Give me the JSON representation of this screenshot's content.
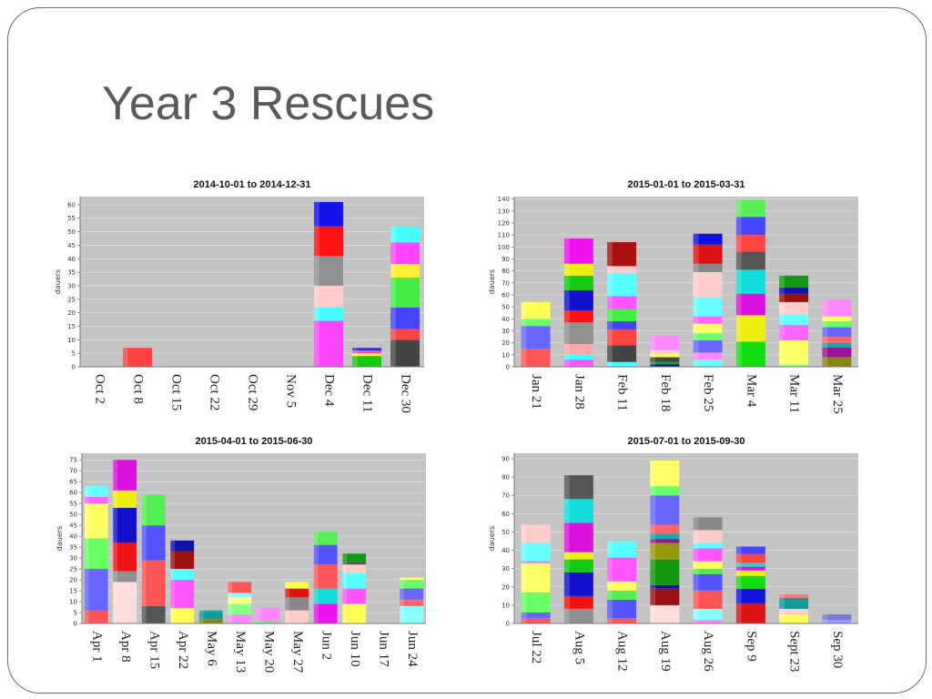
{
  "slide": {
    "title": "Year 3 Rescues"
  },
  "chart_data": [
    {
      "type": "bar",
      "title": "2014-10-01 to 2014-12-31",
      "ylabel": "dauers",
      "ylim": [
        0,
        63
      ],
      "yticks": [
        0,
        5,
        10,
        15,
        20,
        25,
        30,
        35,
        40,
        45,
        50,
        55,
        60
      ],
      "categories": [
        "Oct 2",
        "Oct 8",
        "Oct 15",
        "Oct 22",
        "Oct 29",
        "Nov 5",
        "Dec 4",
        "Dec 11",
        "Dec 30"
      ],
      "stacks": [
        [],
        [
          [
            7,
            "#ff4040"
          ]
        ],
        [],
        [],
        [],
        [],
        [
          [
            17,
            "#ff44ff"
          ],
          [
            5,
            "#44ffff"
          ],
          [
            8,
            "#ffcccc"
          ],
          [
            11,
            "#909090"
          ],
          [
            11,
            "#ff1111"
          ],
          [
            9,
            "#1111ee"
          ]
        ],
        [
          [
            4,
            "#11cc11"
          ],
          [
            1,
            "#ffee33"
          ],
          [
            1,
            "#ff44ff"
          ],
          [
            1,
            "#3333cc"
          ]
        ],
        [
          [
            10,
            "#444444"
          ],
          [
            4,
            "#ff4444"
          ],
          [
            8,
            "#4444ff"
          ],
          [
            11,
            "#44ee44"
          ],
          [
            5,
            "#ffee33"
          ],
          [
            8,
            "#ff44ff"
          ],
          [
            6,
            "#44ffff"
          ]
        ]
      ]
    },
    {
      "type": "bar",
      "title": "2015-01-01 to 2015-03-31",
      "ylabel": "dauers",
      "ylim": [
        0,
        142
      ],
      "yticks": [
        0,
        10,
        20,
        30,
        40,
        50,
        60,
        70,
        80,
        90,
        100,
        110,
        120,
        130,
        140
      ],
      "categories": [
        "Jan 21",
        "Jan 28",
        "Feb 11",
        "Feb 18",
        "Feb 25",
        "Mar 4",
        "Mar 11",
        "Mar 25"
      ],
      "stacks": [
        [
          [
            15,
            "#ff5555"
          ],
          [
            19,
            "#6666ff"
          ],
          [
            6,
            "#66ff66"
          ],
          [
            14,
            "#ffff55"
          ]
        ],
        [
          [
            6,
            "#ff55ff"
          ],
          [
            4,
            "#44ffff"
          ],
          [
            9,
            "#ffaaaa"
          ],
          [
            18,
            "#909090"
          ],
          [
            10,
            "#ff1111"
          ],
          [
            17,
            "#1111cc"
          ],
          [
            12,
            "#11cc11"
          ],
          [
            10,
            "#eeee11"
          ],
          [
            21,
            "#ee11ee"
          ]
        ],
        [
          [
            4,
            "#44ffff"
          ],
          [
            14,
            "#444444"
          ],
          [
            13,
            "#ff4444"
          ],
          [
            7,
            "#4444ff"
          ],
          [
            10,
            "#44ee44"
          ],
          [
            11,
            "#ff55ff"
          ],
          [
            19,
            "#55ffff"
          ],
          [
            6,
            "#ffcccc"
          ],
          [
            20,
            "#aa1111"
          ]
        ],
        [
          [
            2,
            "#0000aa"
          ],
          [
            2,
            "#11aa11"
          ],
          [
            4,
            "#444444"
          ],
          [
            3,
            "#ffff55"
          ],
          [
            3,
            "#ffcccc"
          ],
          [
            12,
            "#ff88ff"
          ]
        ],
        [
          [
            6,
            "#66ffff"
          ],
          [
            6,
            "#ff88ff"
          ],
          [
            10,
            "#6666ff"
          ],
          [
            6,
            "#66ff66"
          ],
          [
            8,
            "#ffff66"
          ],
          [
            6,
            "#ff66ff"
          ],
          [
            16,
            "#66ffff"
          ],
          [
            21,
            "#ffcccc"
          ],
          [
            7,
            "#888888"
          ],
          [
            16,
            "#dd1111"
          ],
          [
            9,
            "#1111dd"
          ]
        ],
        [
          [
            21,
            "#11dd11"
          ],
          [
            22,
            "#eeee11"
          ],
          [
            18,
            "#dd11dd"
          ],
          [
            20,
            "#11dddd"
          ],
          [
            15,
            "#555555"
          ],
          [
            14,
            "#ff4444"
          ],
          [
            15,
            "#4444ff"
          ],
          [
            14,
            "#55ee55"
          ]
        ],
        [
          [
            2,
            "#88ff88"
          ],
          [
            20,
            "#ffff66"
          ],
          [
            13,
            "#ff66ff"
          ],
          [
            9,
            "#66ffff"
          ],
          [
            10,
            "#ffcccc"
          ],
          [
            7,
            "#991111"
          ],
          [
            5,
            "#1111aa"
          ],
          [
            10,
            "#119911"
          ]
        ],
        [
          [
            8,
            "#888811"
          ],
          [
            8,
            "#991199"
          ],
          [
            4,
            "#11aaaa"
          ],
          [
            5,
            "#ff6666"
          ],
          [
            8,
            "#6666ff"
          ],
          [
            5,
            "#66ff66"
          ],
          [
            4,
            "#ffff66"
          ],
          [
            14,
            "#ff88ff"
          ]
        ]
      ]
    },
    {
      "type": "bar",
      "title": "2015-04-01 to 2015-06-30",
      "ylabel": "dauers",
      "ylim": [
        0,
        78
      ],
      "yticks": [
        0,
        5,
        10,
        15,
        20,
        25,
        30,
        35,
        40,
        45,
        50,
        55,
        60,
        65,
        70,
        75
      ],
      "categories": [
        "Apr 1",
        "Apr 8",
        "Apr 15",
        "Apr 22",
        "May 6",
        "May 13",
        "May 20",
        "May 27",
        "Jun 2",
        "Jun 10",
        "Jun 17",
        "Jun 24"
      ],
      "stacks": [
        [
          [
            6,
            "#ff5555"
          ],
          [
            19,
            "#6666ff"
          ],
          [
            14,
            "#66ff66"
          ],
          [
            16,
            "#ffff66"
          ],
          [
            3,
            "#ff66ff"
          ],
          [
            5,
            "#66ffff"
          ]
        ],
        [
          [
            19,
            "#ffdddd"
          ],
          [
            5,
            "#909090"
          ],
          [
            13,
            "#ee1111"
          ],
          [
            16,
            "#1111cc"
          ],
          [
            8,
            "#eeee11"
          ],
          [
            14,
            "#dd11dd"
          ]
        ],
        [
          [
            8,
            "#555555"
          ],
          [
            21,
            "#ff5555"
          ],
          [
            16,
            "#5555ff"
          ],
          [
            14,
            "#55ee55"
          ]
        ],
        [
          [
            7,
            "#ffff55"
          ],
          [
            13,
            "#ff55ff"
          ],
          [
            5,
            "#55ffff"
          ],
          [
            8,
            "#991111"
          ],
          [
            5,
            "#1111aa"
          ]
        ],
        [
          [
            2,
            "#888811"
          ],
          [
            3,
            "#119999"
          ],
          [
            1,
            "#11aaaa"
          ]
        ],
        [
          [
            4,
            "#ff88ff"
          ],
          [
            5,
            "#88ff88"
          ],
          [
            3,
            "#ffff88"
          ],
          [
            2,
            "#88ffff"
          ],
          [
            5,
            "#ff5555"
          ]
        ],
        [
          [
            1,
            "#55ff55"
          ],
          [
            6,
            "#ff88ff"
          ]
        ],
        [
          [
            6,
            "#ffcccc"
          ],
          [
            6,
            "#888888"
          ],
          [
            4,
            "#dd1111"
          ],
          [
            3,
            "#ffff44"
          ]
        ],
        [
          [
            9,
            "#ee11ee"
          ],
          [
            7,
            "#11dddd"
          ],
          [
            11,
            "#ff5555"
          ],
          [
            9,
            "#5555ff"
          ],
          [
            6,
            "#55ee55"
          ]
        ],
        [
          [
            9,
            "#ffff55"
          ],
          [
            7,
            "#ff55ff"
          ],
          [
            7,
            "#55ffff"
          ],
          [
            4,
            "#ffcccc"
          ],
          [
            1,
            "#555555"
          ],
          [
            4,
            "#119911"
          ]
        ],
        [],
        [
          [
            8,
            "#88ffff"
          ],
          [
            3,
            "#ff6666"
          ],
          [
            5,
            "#6666ff"
          ],
          [
            4,
            "#66ff66"
          ],
          [
            1,
            "#ffff66"
          ]
        ]
      ]
    },
    {
      "type": "bar",
      "title": "2015-07-01 to 2015-09-30",
      "ylabel": "dauers",
      "ylim": [
        0,
        93
      ],
      "yticks": [
        0,
        10,
        20,
        30,
        40,
        50,
        60,
        70,
        80,
        90
      ],
      "categories": [
        "Jul 22",
        "Aug 5",
        "Aug 12",
        "Aug 19",
        "Aug 26",
        "Sep 9",
        "Sept 23",
        "Sep 30"
      ],
      "stacks": [
        [
          [
            3,
            "#ff5555"
          ],
          [
            3,
            "#6666ff"
          ],
          [
            11,
            "#66ff66"
          ],
          [
            16,
            "#ffff66"
          ],
          [
            1,
            "#ff66ff"
          ],
          [
            10,
            "#66ffff"
          ],
          [
            10,
            "#ffcccc"
          ]
        ],
        [
          [
            8,
            "#909090"
          ],
          [
            7,
            "#ee1111"
          ],
          [
            13,
            "#1111cc"
          ],
          [
            7,
            "#11cc11"
          ],
          [
            4,
            "#eeee11"
          ],
          [
            16,
            "#dd11dd"
          ],
          [
            13,
            "#11dddd"
          ],
          [
            13,
            "#555555"
          ]
        ],
        [
          [
            3,
            "#ff5555"
          ],
          [
            10,
            "#5555ff"
          ],
          [
            5,
            "#55ee55"
          ],
          [
            5,
            "#ffff55"
          ],
          [
            13,
            "#ff55ff"
          ],
          [
            9,
            "#55ffff"
          ]
        ],
        [
          [
            10,
            "#ffdddd"
          ],
          [
            9,
            "#991111"
          ],
          [
            2,
            "#1111aa"
          ],
          [
            14,
            "#119911"
          ],
          [
            9,
            "#999911"
          ],
          [
            2,
            "#991199"
          ],
          [
            3,
            "#11aaaa"
          ],
          [
            5,
            "#ff6666"
          ],
          [
            16,
            "#6666ff"
          ],
          [
            5,
            "#66ff66"
          ],
          [
            14,
            "#ffff66"
          ]
        ],
        [
          [
            2,
            "#ff88ff"
          ],
          [
            6,
            "#88ffff"
          ],
          [
            10,
            "#ff5555"
          ],
          [
            9,
            "#5555ff"
          ],
          [
            3,
            "#55ee55"
          ],
          [
            4,
            "#ffff55"
          ],
          [
            7,
            "#ff55ff"
          ],
          [
            3,
            "#55ffff"
          ],
          [
            7,
            "#ffcccc"
          ],
          [
            7,
            "#888888"
          ]
        ],
        [
          [
            11,
            "#dd1111"
          ],
          [
            8,
            "#1111dd"
          ],
          [
            7,
            "#11dd11"
          ],
          [
            3,
            "#eeee11"
          ],
          [
            2,
            "#dd11dd"
          ],
          [
            2,
            "#11dddd"
          ],
          [
            5,
            "#ff4444"
          ],
          [
            4,
            "#4444ff"
          ]
        ],
        [
          [
            5,
            "#ffff55"
          ],
          [
            3,
            "#ffcccc"
          ],
          [
            6,
            "#119999"
          ],
          [
            2,
            "#ff7777"
          ]
        ],
        [
          [
            2,
            "#9999ff"
          ],
          [
            3,
            "#7777dd"
          ]
        ]
      ]
    }
  ]
}
